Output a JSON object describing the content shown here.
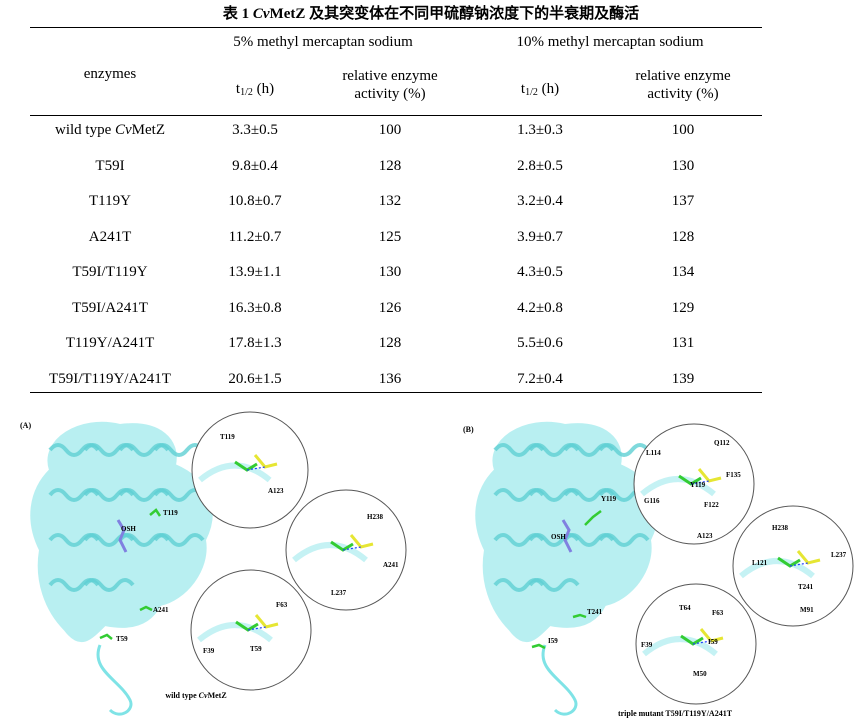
{
  "title": {
    "prefix": "表 1 ",
    "italic": "Cv",
    "bold_name": "MetZ",
    "suffix": " 及其突变体在不同甲硫醇钠浓度下的半衰期及酶活"
  },
  "table": {
    "group_headers": [
      "5% methyl mercaptan sodium",
      "10% methyl mercaptan sodium"
    ],
    "col_enzymes": "enzymes",
    "t_half": {
      "t": "t",
      "sub": "1/2",
      "unit": " (h)"
    },
    "activity": [
      "relative enzyme",
      "activity (%)"
    ],
    "rows": [
      {
        "enzyme": "wild type ",
        "enzyme_italic": "Cv",
        "enzyme_tail": "MetZ",
        "t5": "3.3±0.5",
        "a5": "100",
        "t10": "1.3±0.3",
        "a10": "100"
      },
      {
        "enzyme": "T59I",
        "t5": "9.8±0.4",
        "a5": "128",
        "t10": "2.8±0.5",
        "a10": "130"
      },
      {
        "enzyme": "T119Y",
        "t5": "10.8±0.7",
        "a5": "132",
        "t10": "3.2±0.4",
        "a10": "137"
      },
      {
        "enzyme": "A241T",
        "t5": "11.2±0.7",
        "a5": "125",
        "t10": "3.9±0.7",
        "a10": "128"
      },
      {
        "enzyme": "T59I/T119Y",
        "t5": "13.9±1.1",
        "a5": "130",
        "t10": "4.3±0.5",
        "a10": "134"
      },
      {
        "enzyme": "T59I/A241T",
        "t5": "16.3±0.8",
        "a5": "126",
        "t10": "4.2±0.8",
        "a10": "129"
      },
      {
        "enzyme": "T119Y/A241T",
        "t5": "17.8±1.3",
        "a5": "128",
        "t10": "5.5±0.6",
        "a10": "131"
      },
      {
        "enzyme": "T59I/T119Y/A241T",
        "t5": "20.6±1.5",
        "a5": "136",
        "t10": "7.2±0.4",
        "a10": "139"
      }
    ]
  },
  "figure": {
    "colors": {
      "protein": "#7fe3e6",
      "mutant": "#33cc33",
      "neighbor": "#e6e633",
      "ligand": "#8080e0",
      "hbond": "#1f3fff"
    },
    "panel_a": {
      "label": "(A)",
      "caption": "wild type ",
      "caption_italic": "Cv",
      "caption_tail": "MetZ",
      "labels": [
        "T119",
        "OSH",
        "A241",
        "T59"
      ],
      "zoom_labels": [
        "T119",
        "A123",
        "H238",
        "A241",
        "L237",
        "F63",
        "F39",
        "T59"
      ]
    },
    "panel_b": {
      "label": "(B)",
      "caption": "triple mutant T59I/T119Y/A241T",
      "labels": [
        "Y119",
        "OSH",
        "T241",
        "I59"
      ],
      "zoom_labels": [
        "Q112",
        "L114",
        "F135",
        "Y119",
        "G116",
        "F122",
        "A123",
        "H238",
        "L237",
        "L121",
        "T241",
        "M91",
        "T64",
        "F63",
        "F39",
        "I59",
        "M50"
      ]
    }
  }
}
